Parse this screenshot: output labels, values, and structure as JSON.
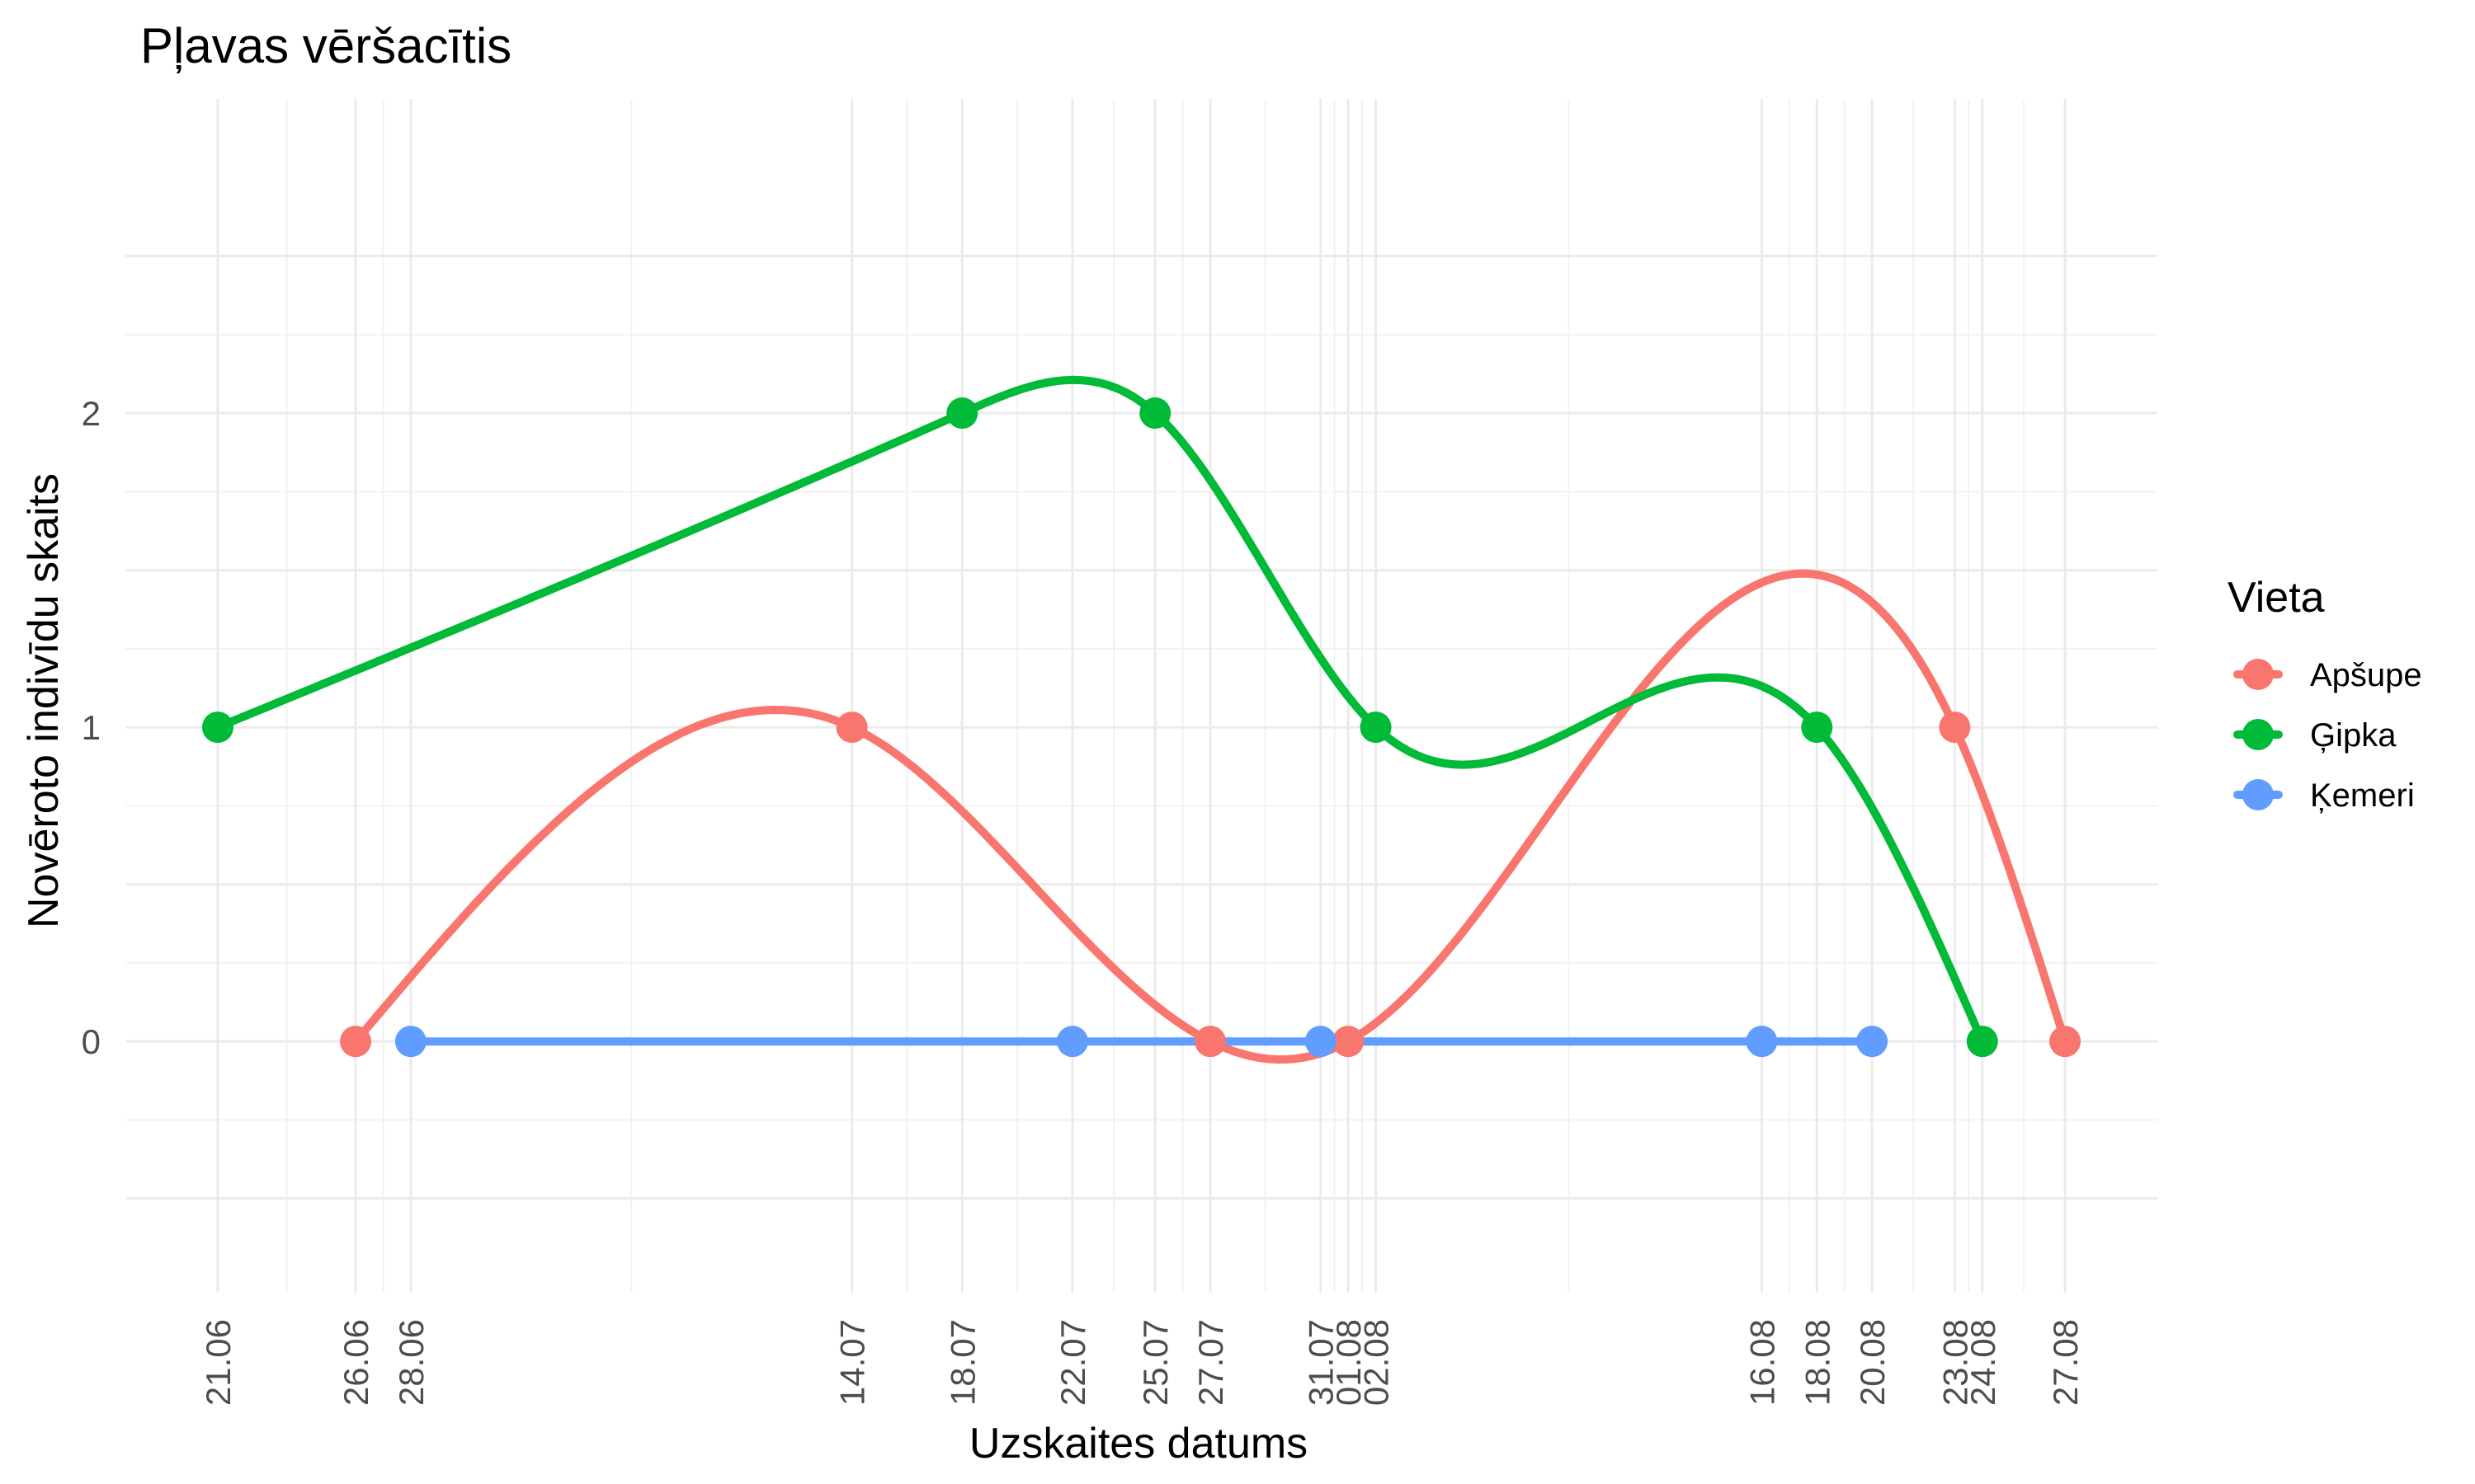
{
  "chart_data": {
    "type": "line",
    "title": "Pļavas vēršacītis",
    "xlabel": "Uzskaites datums",
    "ylabel": "Novēroto indivīdu skaits",
    "x_axis": "date",
    "x_ticks": [
      "21.06",
      "26.06",
      "28.06",
      "14.07",
      "18.07",
      "22.07",
      "25.07",
      "27.07",
      "31.07",
      "01.08",
      "02.08",
      "16.08",
      "18.08",
      "20.08",
      "23.08",
      "24.08",
      "27.08"
    ],
    "y_ticks": [
      0,
      1,
      2
    ],
    "ylim": [
      -0.8,
      3.0
    ],
    "grid": true,
    "smoothed_lines": true,
    "legend": {
      "title": "Vieta",
      "position": "right"
    },
    "series": [
      {
        "name": "Apšupe",
        "color": "#F8766D",
        "points": [
          {
            "x": "26.06",
            "y": 0
          },
          {
            "x": "14.07",
            "y": 1
          },
          {
            "x": "27.07",
            "y": 0
          },
          {
            "x": "01.08",
            "y": 0
          },
          {
            "x": "23.08",
            "y": 1
          },
          {
            "x": "27.08",
            "y": 0
          }
        ]
      },
      {
        "name": "Ģipka",
        "color": "#00BA38",
        "points": [
          {
            "x": "21.06",
            "y": 1
          },
          {
            "x": "18.07",
            "y": 2
          },
          {
            "x": "25.07",
            "y": 2
          },
          {
            "x": "02.08",
            "y": 1
          },
          {
            "x": "18.08",
            "y": 1
          },
          {
            "x": "24.08",
            "y": 0
          }
        ]
      },
      {
        "name": "Ķemeri",
        "color": "#619CFF",
        "points": [
          {
            "x": "28.06",
            "y": 0
          },
          {
            "x": "22.07",
            "y": 0
          },
          {
            "x": "31.07",
            "y": 0
          },
          {
            "x": "16.08",
            "y": 0
          },
          {
            "x": "20.08",
            "y": 0
          }
        ]
      }
    ]
  }
}
